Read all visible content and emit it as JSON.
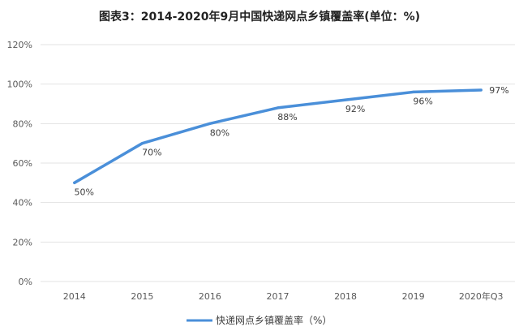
{
  "chart_data": {
    "type": "line",
    "title": "图表3：2014-2020年9月中国快递网点乡镇覆盖率(单位：%)",
    "categories": [
      "2014",
      "2015",
      "2016",
      "2017",
      "2018",
      "2019",
      "2020年Q3"
    ],
    "series": [
      {
        "name": "快递网点乡镇覆盖率（%）",
        "values": [
          50,
          70,
          80,
          88,
          92,
          96,
          97
        ],
        "labels": [
          "50%",
          "70%",
          "80%",
          "88%",
          "92%",
          "96%",
          "97%"
        ],
        "color": "#4a8fd9"
      }
    ],
    "ylim": [
      0,
      120
    ],
    "yticks": [
      0,
      20,
      40,
      60,
      80,
      100,
      120
    ],
    "ytick_labels": [
      "0%",
      "20%",
      "40%",
      "60%",
      "80%",
      "100%",
      "120%"
    ],
    "grid": true,
    "gridline_color": "#e3e3e3",
    "legend_position": "bottom"
  }
}
